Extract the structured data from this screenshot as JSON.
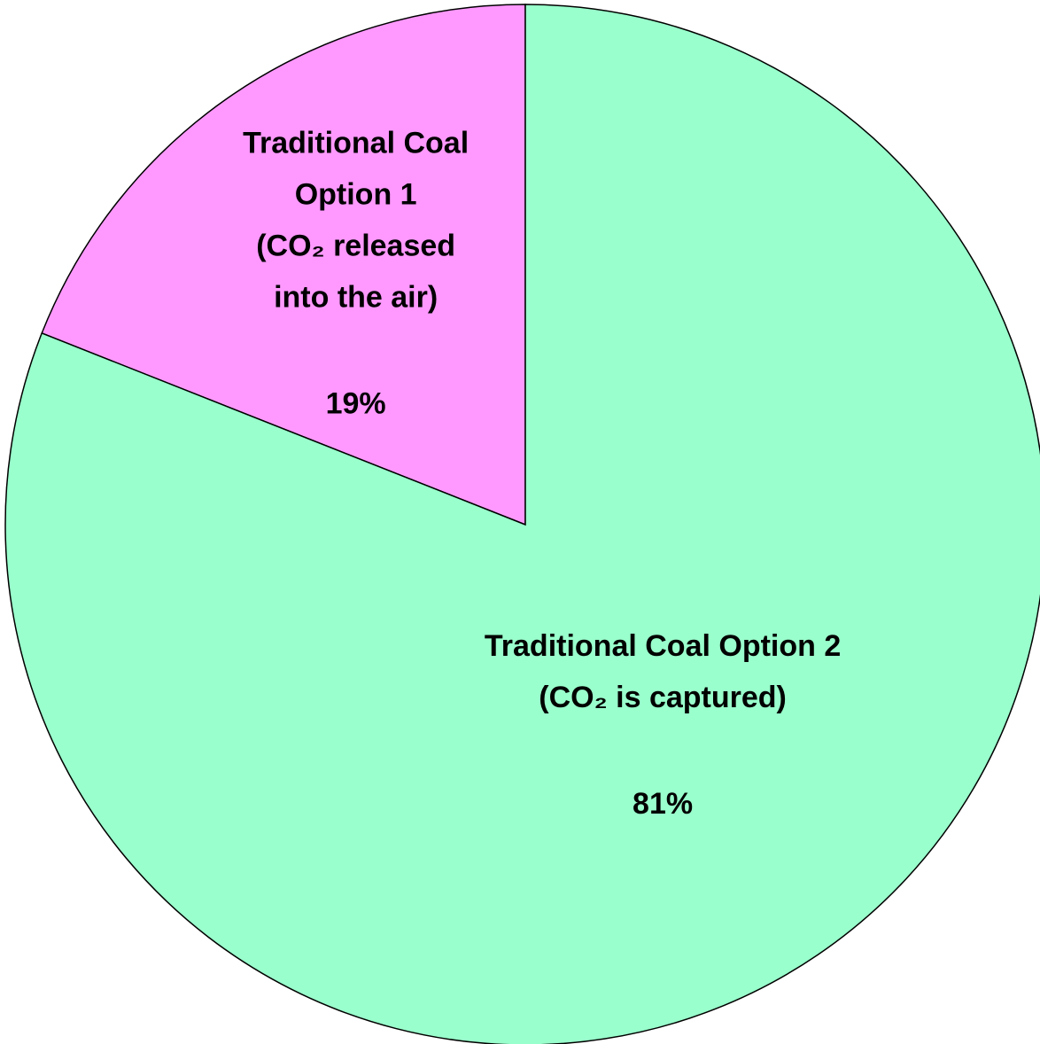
{
  "chart_data": {
    "type": "pie",
    "categories": [
      [
        "Traditional Coal",
        "Option 1",
        "(CO₂ released",
        "into the air)"
      ],
      [
        "Traditional Coal Option 2",
        "(CO₂ is captured)"
      ]
    ],
    "values": [
      19,
      81
    ],
    "value_labels": [
      "19%",
      "81%"
    ],
    "colors": [
      "#ff99ff",
      "#99ffcc"
    ]
  }
}
